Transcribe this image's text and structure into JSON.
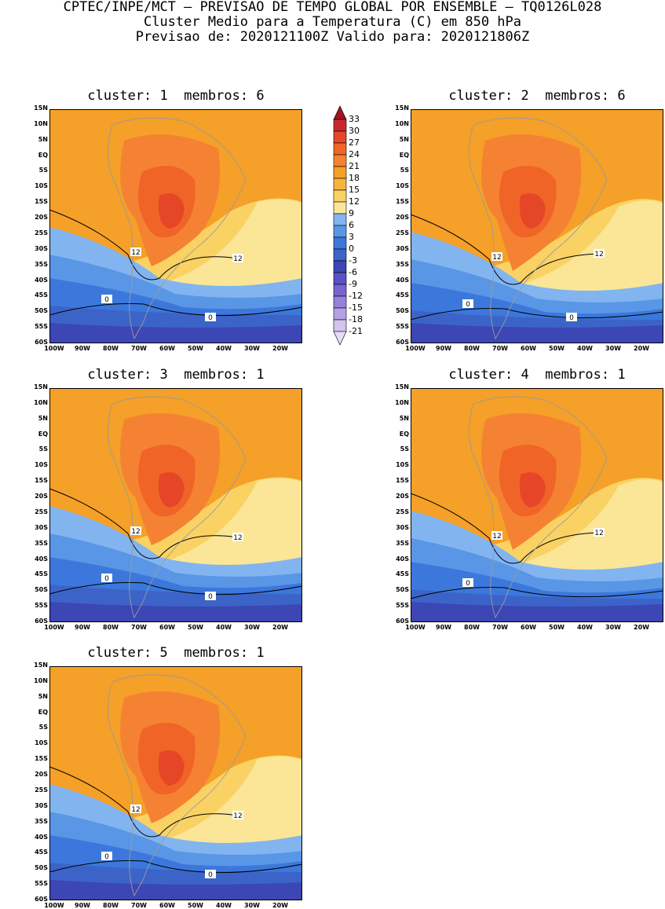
{
  "header": {
    "line1": "CPTEC/INPE/MCT – PREVISAO DE TEMPO GLOBAL POR ENSEMBLE – TQ0126L028",
    "line2": "Cluster Medio para a Temperatura (C) em 850 hPa",
    "line3": "Previsao de: 2020121100Z   Valido para: 2020121806Z"
  },
  "panels": [
    {
      "title": "cluster: 1  membros: 6",
      "contour_labels": [
        "12",
        "12",
        "0",
        "0"
      ]
    },
    {
      "title": "cluster: 2  membros: 6",
      "contour_labels": [
        "12",
        "12",
        "0",
        "0"
      ]
    },
    {
      "title": "cluster: 3  membros: 1",
      "contour_labels": [
        "12",
        "12",
        "0",
        "0"
      ]
    },
    {
      "title": "cluster: 4  membros: 1",
      "contour_labels": [
        "12",
        "12",
        "0"
      ]
    },
    {
      "title": "cluster: 5  membros: 1",
      "contour_labels": [
        "12",
        "12",
        "0",
        "0"
      ]
    }
  ],
  "lat_labels": [
    "15N",
    "10N",
    "5N",
    "EQ",
    "5S",
    "10S",
    "15S",
    "20S",
    "25S",
    "30S",
    "35S",
    "40S",
    "45S",
    "50S",
    "55S",
    "60S"
  ],
  "lon_labels": [
    "100W",
    "90W",
    "80W",
    "70W",
    "60W",
    "50W",
    "40W",
    "30W",
    "20W"
  ],
  "colorbar": {
    "labels": [
      "33",
      "30",
      "27",
      "24",
      "21",
      "18",
      "15",
      "12",
      "9",
      "6",
      "3",
      "0",
      "-3",
      "-6",
      "-9",
      "-12",
      "-15",
      "-18",
      "-21"
    ],
    "colors": [
      "#a0141e",
      "#c8282d",
      "#e64628",
      "#f06428",
      "#f58232",
      "#f5a028",
      "#f5b43c",
      "#fad264",
      "#fae696",
      "#82b4f0",
      "#5a96e6",
      "#3c78dc",
      "#3c64c8",
      "#3c46b4",
      "#5a50c8",
      "#7864d2",
      "#9682dc",
      "#b4a0e6",
      "#d2c3f0",
      "#e6dcf8"
    ]
  }
}
